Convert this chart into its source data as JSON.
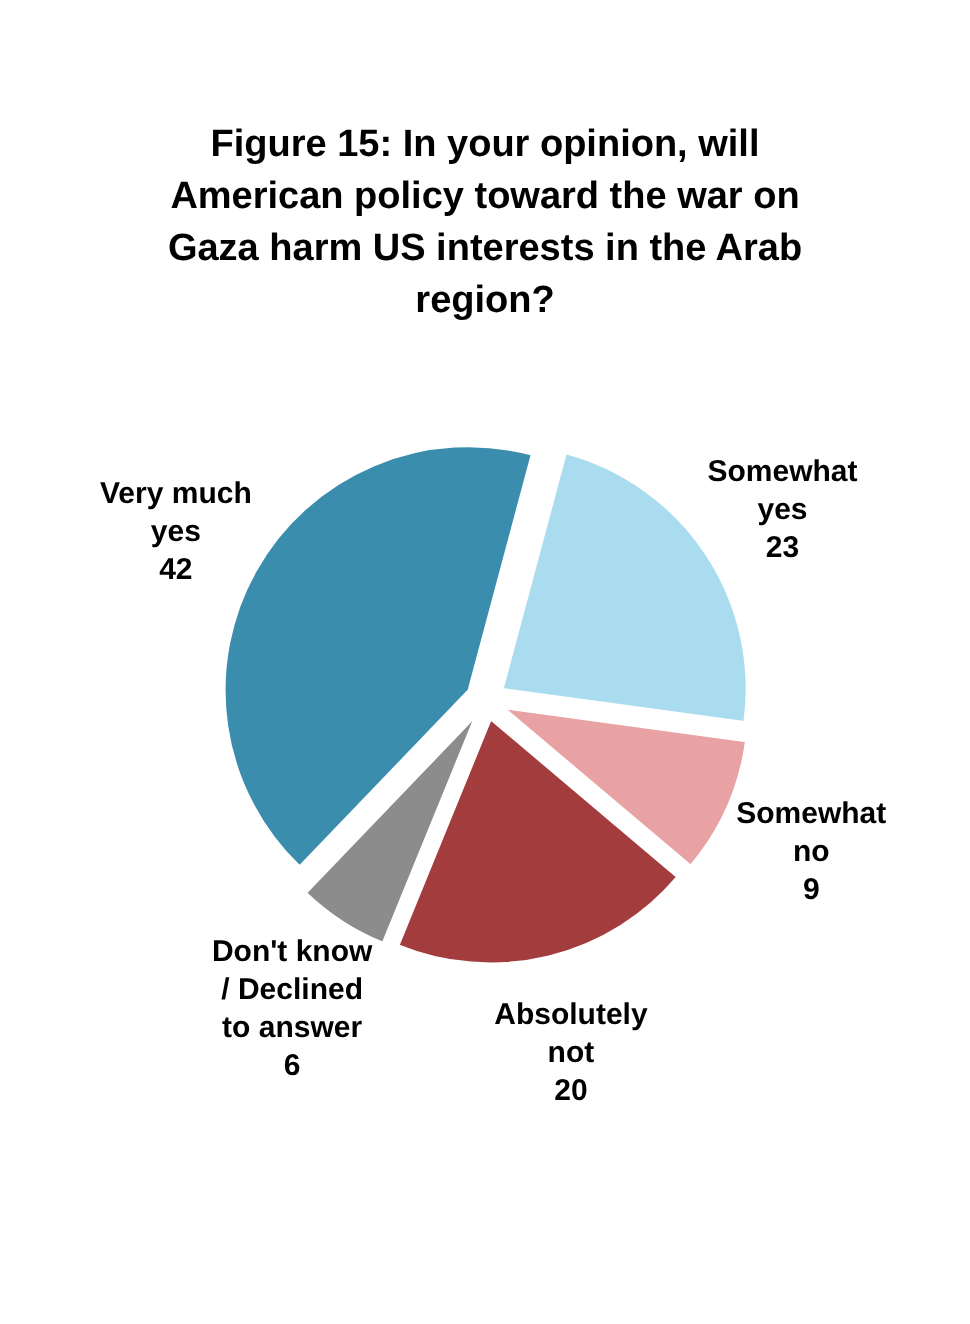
{
  "chart_data": {
    "type": "pie",
    "title": "Figure 15: In your opinion, will American policy toward the war on Gaza harm US interests in the Arab region?",
    "categories": [
      "Somewhat yes",
      "Somewhat no",
      "Absolutely not",
      "Don't know / Declined to answer",
      "Very much yes"
    ],
    "values": [
      23,
      9,
      20,
      6,
      42
    ],
    "colors": [
      "#a9dcee",
      "#e8a2a4",
      "#a33c3d",
      "#8c8c8c",
      "#3a8dad"
    ],
    "data_labels": true
  }
}
